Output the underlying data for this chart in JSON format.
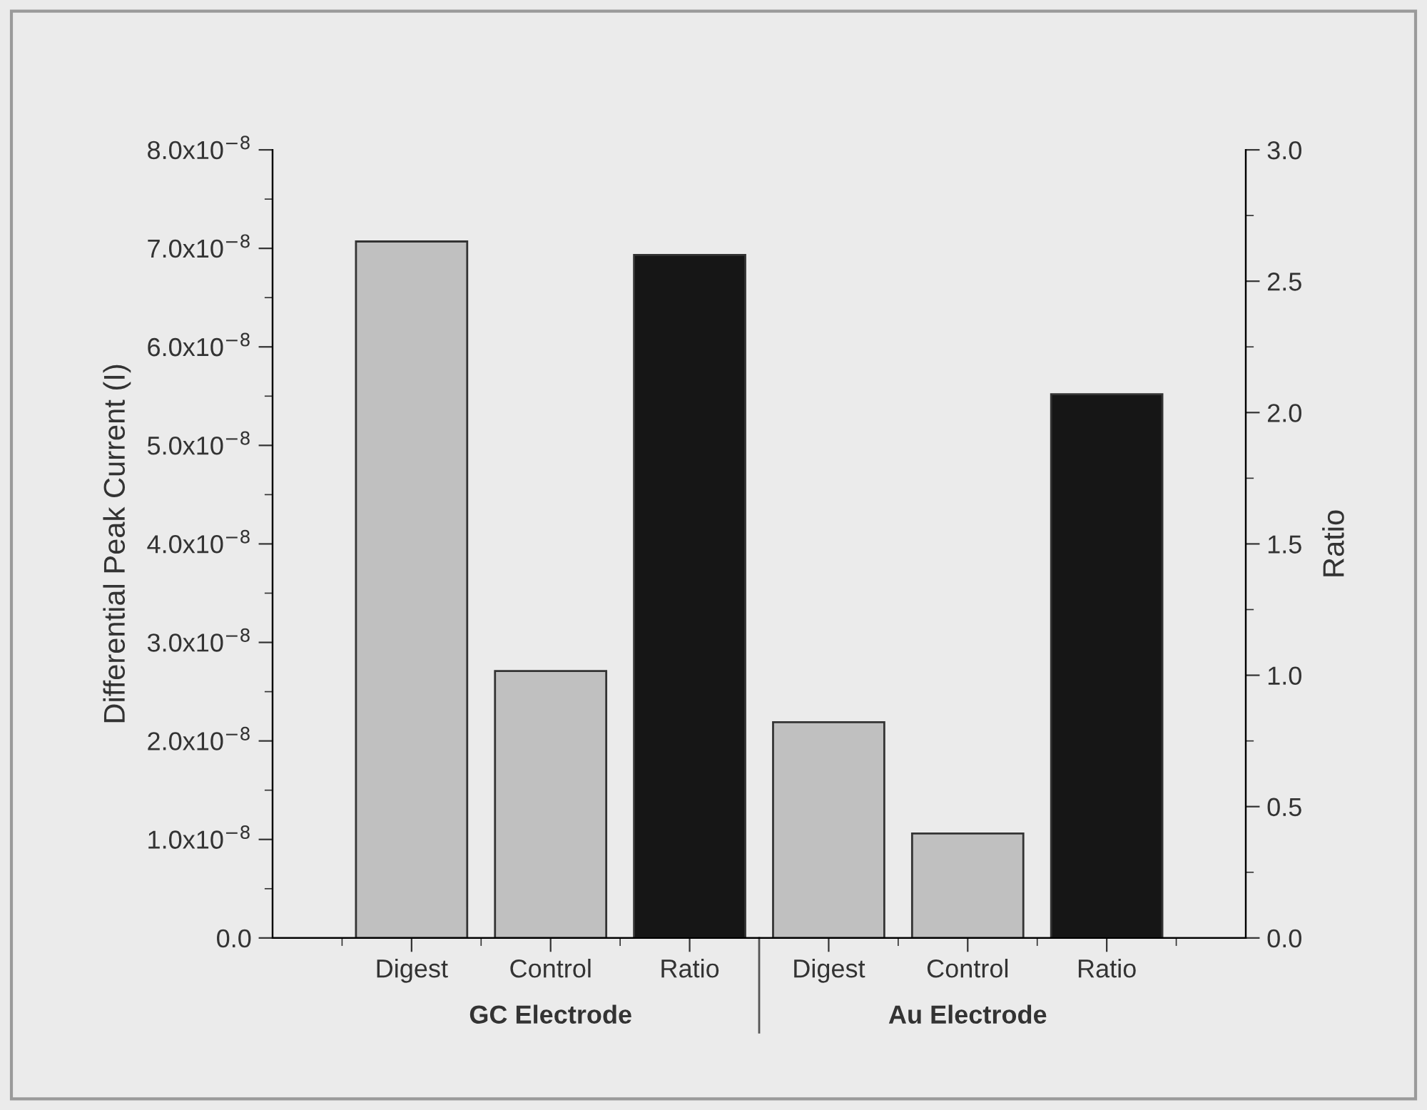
{
  "chart_data": {
    "type": "bar",
    "categories": [
      "Digest",
      "Control",
      "Ratio",
      "Digest",
      "Control",
      "Ratio"
    ],
    "series": [
      {
        "color": "#c0c0c0",
        "values": [
          7.07e-08,
          2.71e-08,
          null,
          2.19e-08,
          1.06e-08,
          null
        ]
      },
      {
        "color": "#161616",
        "axis": "y2",
        "values": [
          null,
          null,
          2.6,
          null,
          null,
          2.07
        ]
      }
    ],
    "ylabel": "Differential Peak Current (I)",
    "y2label": "Ratio",
    "ylim": [
      0,
      8e-08
    ],
    "yticks": [
      {
        "value": 0,
        "label": "0.0"
      },
      {
        "value": 1e-08,
        "label": "1.0x10$^{−8}$"
      },
      {
        "value": 2e-08,
        "label": "2.0x10$^{−8}$"
      },
      {
        "value": 3e-08,
        "label": "3.0x10$^{−8}$"
      },
      {
        "value": 4e-08,
        "label": "4.0x10$^{−8}$"
      },
      {
        "value": 5e-08,
        "label": "5.0x10$^{−8}$"
      },
      {
        "value": 6e-08,
        "label": "6.0x10$^{−8}$"
      },
      {
        "value": 7e-08,
        "label": "7.0x10$^{−8}$"
      },
      {
        "value": 8e-08,
        "label": "8.0x10$^{−8}$"
      }
    ],
    "y2lim": [
      0,
      3.0
    ],
    "y2ticks": [
      {
        "value": 0,
        "label": "0.0"
      },
      {
        "value": 0.5,
        "label": "0.5"
      },
      {
        "value": 1.0,
        "label": "1.0"
      },
      {
        "value": 1.5,
        "label": "1.5"
      },
      {
        "value": 2.0,
        "label": "2.0"
      },
      {
        "value": 2.5,
        "label": "2.5"
      },
      {
        "value": 3.0,
        "label": "3.0"
      }
    ],
    "annotations": [
      "GC Electrode",
      "Au Electrode"
    ],
    "grid": false,
    "legend": false
  }
}
